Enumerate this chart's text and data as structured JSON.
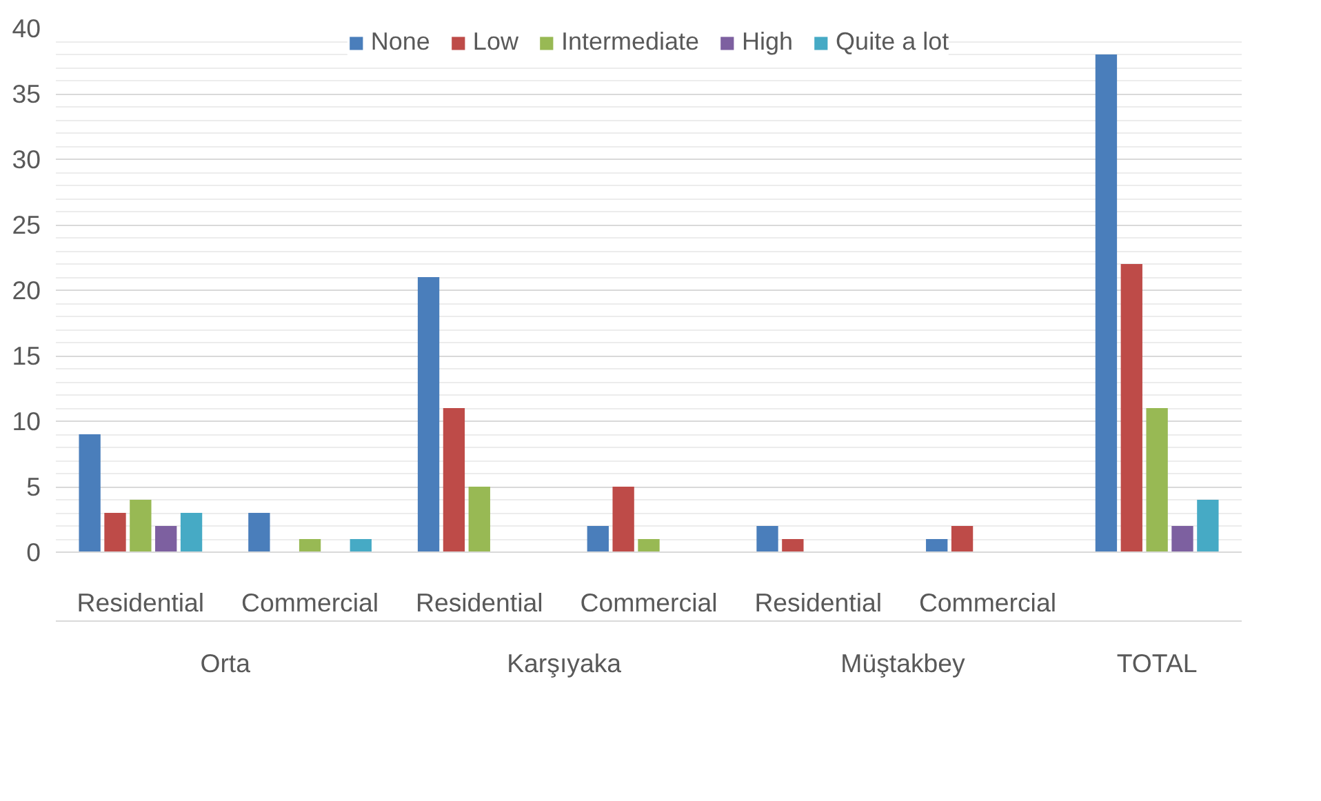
{
  "chart_data": {
    "type": "bar",
    "categories": [
      "Residential",
      "Commercial",
      "Residential",
      "Commercial",
      "Residential",
      "Commercial",
      null
    ],
    "annotations": [
      "Orta",
      "Karşıyaka",
      "Müştakbey",
      "TOTAL"
    ],
    "series": [
      {
        "name": "None",
        "color": "#4a7ebb",
        "values": [
          9,
          3,
          21,
          2,
          2,
          1,
          38
        ]
      },
      {
        "name": "Low",
        "color": "#be4b48",
        "values": [
          3,
          0,
          11,
          5,
          1,
          2,
          22
        ]
      },
      {
        "name": "Intermediate",
        "color": "#98b954",
        "values": [
          4,
          1,
          5,
          1,
          0,
          0,
          11
        ]
      },
      {
        "name": "High",
        "color": "#7d60a0",
        "values": [
          2,
          0,
          0,
          0,
          0,
          0,
          2
        ]
      },
      {
        "name": "Quite a lot",
        "color": "#46aac5",
        "values": [
          3,
          1,
          0,
          0,
          0,
          0,
          4
        ]
      }
    ],
    "ylim": [
      0,
      40
    ],
    "yticks": [
      0,
      5,
      10,
      15,
      20,
      25,
      30,
      35,
      40
    ],
    "grid": "y",
    "legend": "top"
  }
}
